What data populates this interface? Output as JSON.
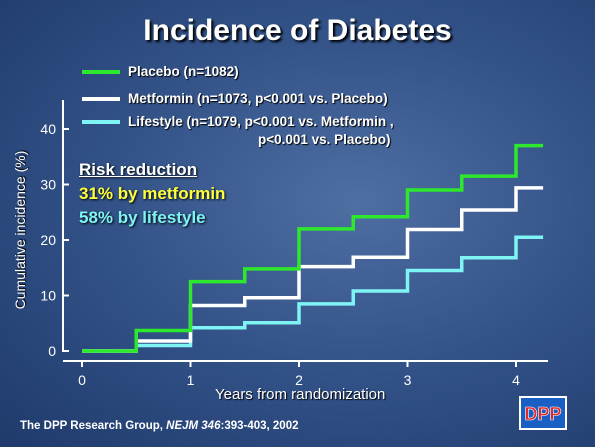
{
  "slide_title": "Incidence of Diabetes",
  "legend": {
    "placebo": "Placebo (n=1082)",
    "metformin": "Metformin (n=1073, p<0.001 vs. Placebo)",
    "lifestyle": "Lifestyle (n=1079, p<0.001 vs. Metformin ,",
    "lifestyle_cont": "p<0.001 vs. Placebo)"
  },
  "risk_reduction": {
    "heading": "Risk reduction",
    "metformin": "31% by metformin",
    "lifestyle": "58% by lifestyle"
  },
  "citation": {
    "authors": "The DPP Research Group, ",
    "journal": "NEJM 346",
    "pages": ":393-403, 2002"
  },
  "logo_text": "DPP",
  "chart_data": {
    "type": "line",
    "step": true,
    "xlabel": "Years from randomization",
    "ylabel": "Cumulative incidence (%)",
    "xlim": [
      0,
      4.3
    ],
    "ylim": [
      0,
      45
    ],
    "xticks": [
      0,
      1,
      2,
      3,
      4
    ],
    "yticks": [
      0,
      10,
      20,
      30,
      40
    ],
    "grid": false,
    "legend_position": "top",
    "series": [
      {
        "name": "Placebo (n=1082)",
        "color": "#2de82d",
        "x": [
          0,
          0.5,
          1.0,
          1.5,
          2.0,
          2.5,
          3.0,
          3.5,
          4.0,
          4.25
        ],
        "y": [
          0,
          3.7,
          12.5,
          14.8,
          22.0,
          24.2,
          29.0,
          31.5,
          37.0,
          37.0
        ]
      },
      {
        "name": "Metformin (n=1073, p<0.001 vs. Placebo)",
        "color": "#ffffff",
        "x": [
          0,
          0.5,
          1.0,
          1.5,
          2.0,
          2.5,
          3.0,
          3.5,
          4.0,
          4.25
        ],
        "y": [
          0,
          1.8,
          8.2,
          9.6,
          15.2,
          16.9,
          21.9,
          25.4,
          29.4,
          29.4
        ]
      },
      {
        "name": "Lifestyle (n=1079, p<0.001 vs. Metformin , p<0.001 vs. Placebo)",
        "color": "#7ff4f4",
        "x": [
          0,
          0.5,
          1.0,
          1.5,
          2.0,
          2.5,
          3.0,
          3.5,
          4.0,
          4.25
        ],
        "y": [
          0,
          1.0,
          4.2,
          5.1,
          8.5,
          10.8,
          14.5,
          16.8,
          20.5,
          20.5
        ]
      }
    ]
  },
  "colors": {
    "placebo": "#2de82d",
    "metformin": "#ffffff",
    "lifestyle": "#7ff4f4",
    "risk_metformin": "#ffff3c",
    "risk_lifestyle": "#7ff4f4"
  }
}
